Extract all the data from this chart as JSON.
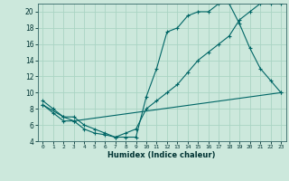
{
  "xlabel": "Humidex (Indice chaleur)",
  "ylabel": "",
  "bg_color": "#cce8dc",
  "line_color": "#006666",
  "grid_color": "#aad4c4",
  "xlim": [
    -0.5,
    23.5
  ],
  "ylim": [
    4,
    21
  ],
  "xticks": [
    0,
    1,
    2,
    3,
    4,
    5,
    6,
    7,
    8,
    9,
    10,
    11,
    12,
    13,
    14,
    15,
    16,
    17,
    18,
    19,
    20,
    21,
    22,
    23
  ],
  "yticks": [
    4,
    6,
    8,
    10,
    12,
    14,
    16,
    18,
    20
  ],
  "line1_x": [
    0,
    1,
    2,
    3,
    4,
    5,
    6,
    7,
    8,
    9,
    10,
    11,
    12,
    13,
    14,
    15,
    16,
    17,
    18,
    19,
    20,
    21,
    22,
    23
  ],
  "line1_y": [
    9,
    8,
    7,
    7,
    6,
    5.5,
    5,
    4.5,
    4.5,
    4.5,
    9.5,
    13,
    17.5,
    18,
    19.5,
    20,
    20,
    21,
    21,
    18.5,
    15.5,
    13,
    11.5,
    10
  ],
  "line2_x": [
    0,
    1,
    2,
    3,
    4,
    5,
    6,
    7,
    8,
    9,
    10,
    11,
    12,
    13,
    14,
    15,
    16,
    17,
    18,
    19,
    20,
    21,
    22,
    23
  ],
  "line2_y": [
    8.5,
    7.5,
    6.5,
    6.5,
    5.5,
    5,
    4.8,
    4.5,
    5,
    5.5,
    8,
    9,
    10,
    11,
    12.5,
    14,
    15,
    16,
    17,
    19,
    20,
    21,
    21,
    21
  ],
  "line3_x": [
    0,
    2,
    3,
    23
  ],
  "line3_y": [
    8.5,
    7,
    6.5,
    10
  ]
}
